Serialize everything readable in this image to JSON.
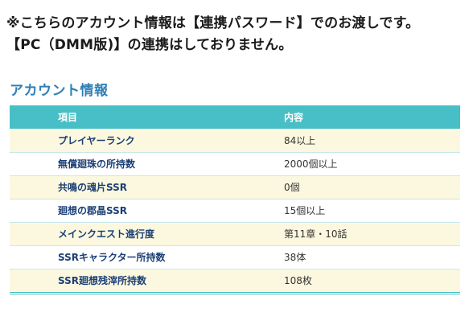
{
  "notice": {
    "line1": "※こちらのアカウント情報は【連携パスワード】でのお渡しです。",
    "line2": "【PC（DMM版)】の連携はしておりません。"
  },
  "section_title": "アカウント情報",
  "table": {
    "headers": [
      "項目",
      "内容"
    ],
    "rows": [
      {
        "item": "プレイヤーランク",
        "value": "84以上"
      },
      {
        "item": "無償廻珠の所持数",
        "value": "2000個以上"
      },
      {
        "item": "共鳴の魂片SSR",
        "value": "0個"
      },
      {
        "item": "廻想の郡晶SSR",
        "value": "15個以上"
      },
      {
        "item": "メインクエスト進行度",
        "value": "第11章・10話"
      },
      {
        "item": "SSRキャラクター所持数",
        "value": "38体"
      },
      {
        "item": "SSR廻想残滓所持数",
        "value": "108枚"
      }
    ]
  },
  "colors": {
    "header_bg": "#48bfc6",
    "row_stripe": "#fbf8df",
    "item_text": "#1b3f76",
    "section_title": "#2f7fb5"
  }
}
